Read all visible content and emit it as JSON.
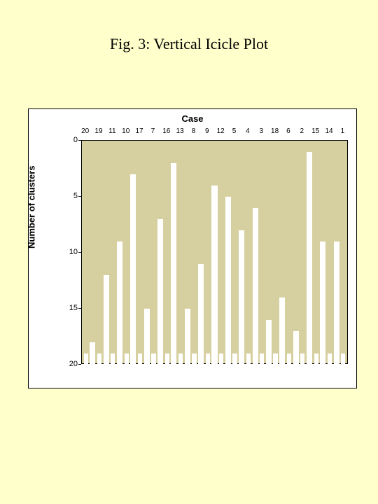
{
  "caption": "Fig. 3: Vertical Icicle Plot",
  "chart": {
    "type": "icicle",
    "top_axis_title": "Case",
    "left_axis_title": "Number of clusters",
    "background_color": "#ffffcc",
    "plot_fill": "#d6cf9f",
    "bar_color": "#ffffff",
    "case_order": [
      "20",
      "19",
      "11",
      "10",
      "17",
      "7",
      "16",
      "13",
      "8",
      "9",
      "12",
      "5",
      "4",
      "3",
      "18",
      "6",
      "2",
      "15",
      "14",
      "1"
    ],
    "gap_start_values": [
      18,
      12,
      9,
      3,
      15,
      7,
      2,
      15,
      11,
      4,
      5,
      8,
      6,
      16,
      14,
      17,
      1,
      9,
      9
    ],
    "case_bar_top": 19,
    "y_ticks": [
      0,
      5,
      10,
      15,
      20
    ],
    "title_fontsize_pt": 22,
    "axis_title_fontsize_pt": 13,
    "tick_fontsize_pt": 10
  }
}
